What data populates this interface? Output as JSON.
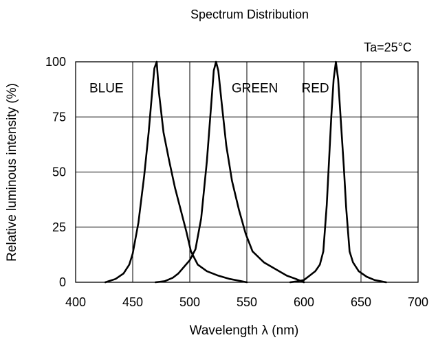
{
  "chart_data": {
    "type": "line",
    "title": "Spectrum Distribution",
    "annotation": "Ta=25°C",
    "xlabel": "Wavelength  λ (nm)",
    "ylabel": "Relative luminous intensity (%)",
    "xlim": [
      400,
      700
    ],
    "ylim": [
      0,
      100
    ],
    "xticks": [
      "400",
      "450",
      "500",
      "550",
      "600",
      "650",
      "700"
    ],
    "yticks": [
      "0",
      "25",
      "50",
      "75",
      "100"
    ],
    "grid": true,
    "line_color": "#000000",
    "series": [
      {
        "name": "BLUE",
        "x": [
          426,
          435,
          442,
          447,
          450,
          455,
          460,
          464,
          467,
          469,
          471,
          473,
          477,
          482,
          487,
          492,
          497,
          501,
          507,
          515,
          525,
          535,
          545,
          550
        ],
        "y": [
          0,
          1.5,
          4,
          8,
          13,
          27,
          48,
          68,
          86,
          97,
          100,
          86,
          68,
          55,
          43,
          33,
          23,
          14,
          8,
          5,
          3,
          1.5,
          0.5,
          0
        ]
      },
      {
        "name": "GREEN",
        "x": [
          470,
          478,
          485,
          490,
          495,
          500,
          505,
          510,
          515,
          519,
          521,
          523,
          525,
          528,
          532,
          537,
          543,
          549,
          555,
          565,
          575,
          585,
          593,
          600
        ],
        "y": [
          0,
          0.5,
          2,
          4,
          7,
          10,
          15,
          29,
          55,
          82,
          96,
          100,
          96,
          81,
          62,
          46,
          33,
          22,
          14,
          9,
          6,
          3,
          1.5,
          0
        ]
      },
      {
        "name": "RED",
        "x": [
          588,
          595,
          600,
          605,
          610,
          614,
          617,
          620,
          622,
          624,
          626,
          628,
          630,
          632,
          635,
          637,
          640,
          643,
          648,
          655,
          662,
          672
        ],
        "y": [
          0,
          0.5,
          1,
          3,
          5,
          8,
          14,
          35,
          55,
          75,
          92,
          100,
          92,
          76,
          52,
          34,
          14,
          9,
          5,
          2.5,
          1,
          0
        ]
      }
    ],
    "series_labels": [
      {
        "text": "BLUE",
        "x": 427,
        "y": 88
      },
      {
        "text": "GREEN",
        "x": 557,
        "y": 88
      },
      {
        "text": "RED",
        "x": 610,
        "y": 88
      }
    ]
  }
}
